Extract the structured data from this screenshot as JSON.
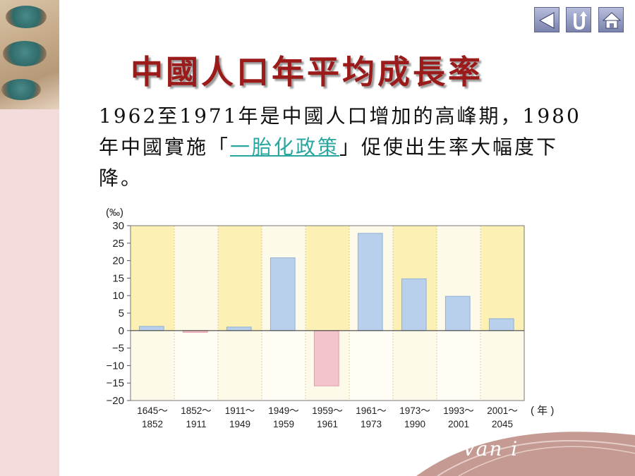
{
  "title": "中國人口年平均成長率",
  "paragraph": {
    "before": "1962至1971年是中國人口增加的高峰期，1980年中國實施「",
    "link": "一胎化政策",
    "after": "」促使出生率大幅度下降。"
  },
  "nav": {
    "prev_icon": "left-triangle-icon",
    "return_icon": "u-turn-icon",
    "home_icon": "home-icon"
  },
  "watermark": "Van i",
  "chart_data": {
    "type": "bar",
    "ylabel": "(‰)",
    "xunit": "( 年 )",
    "ylim": [
      -20,
      30
    ],
    "yticks": [
      "30",
      "25",
      "20",
      "15",
      "10",
      "5",
      "0",
      "−5",
      "−10",
      "−15",
      "−20"
    ],
    "categories": [
      [
        "1645～",
        "1852"
      ],
      [
        "1852～",
        "1911"
      ],
      [
        "1911～",
        "1949"
      ],
      [
        "1949～",
        "1959"
      ],
      [
        "1959～",
        "1961"
      ],
      [
        "1961～",
        "1973"
      ],
      [
        "1973～",
        "1990"
      ],
      [
        "1993～",
        "2001"
      ],
      [
        "2001～",
        "2045"
      ]
    ],
    "values": [
      1.2,
      -0.5,
      1.0,
      20.8,
      -15.8,
      27.8,
      14.8,
      9.8,
      3.4
    ],
    "colors": {
      "positive": "#b8d0ec",
      "negative": "#f4c3cc",
      "band_a": "#fcf0b4",
      "band_b": "#fefaea"
    }
  }
}
